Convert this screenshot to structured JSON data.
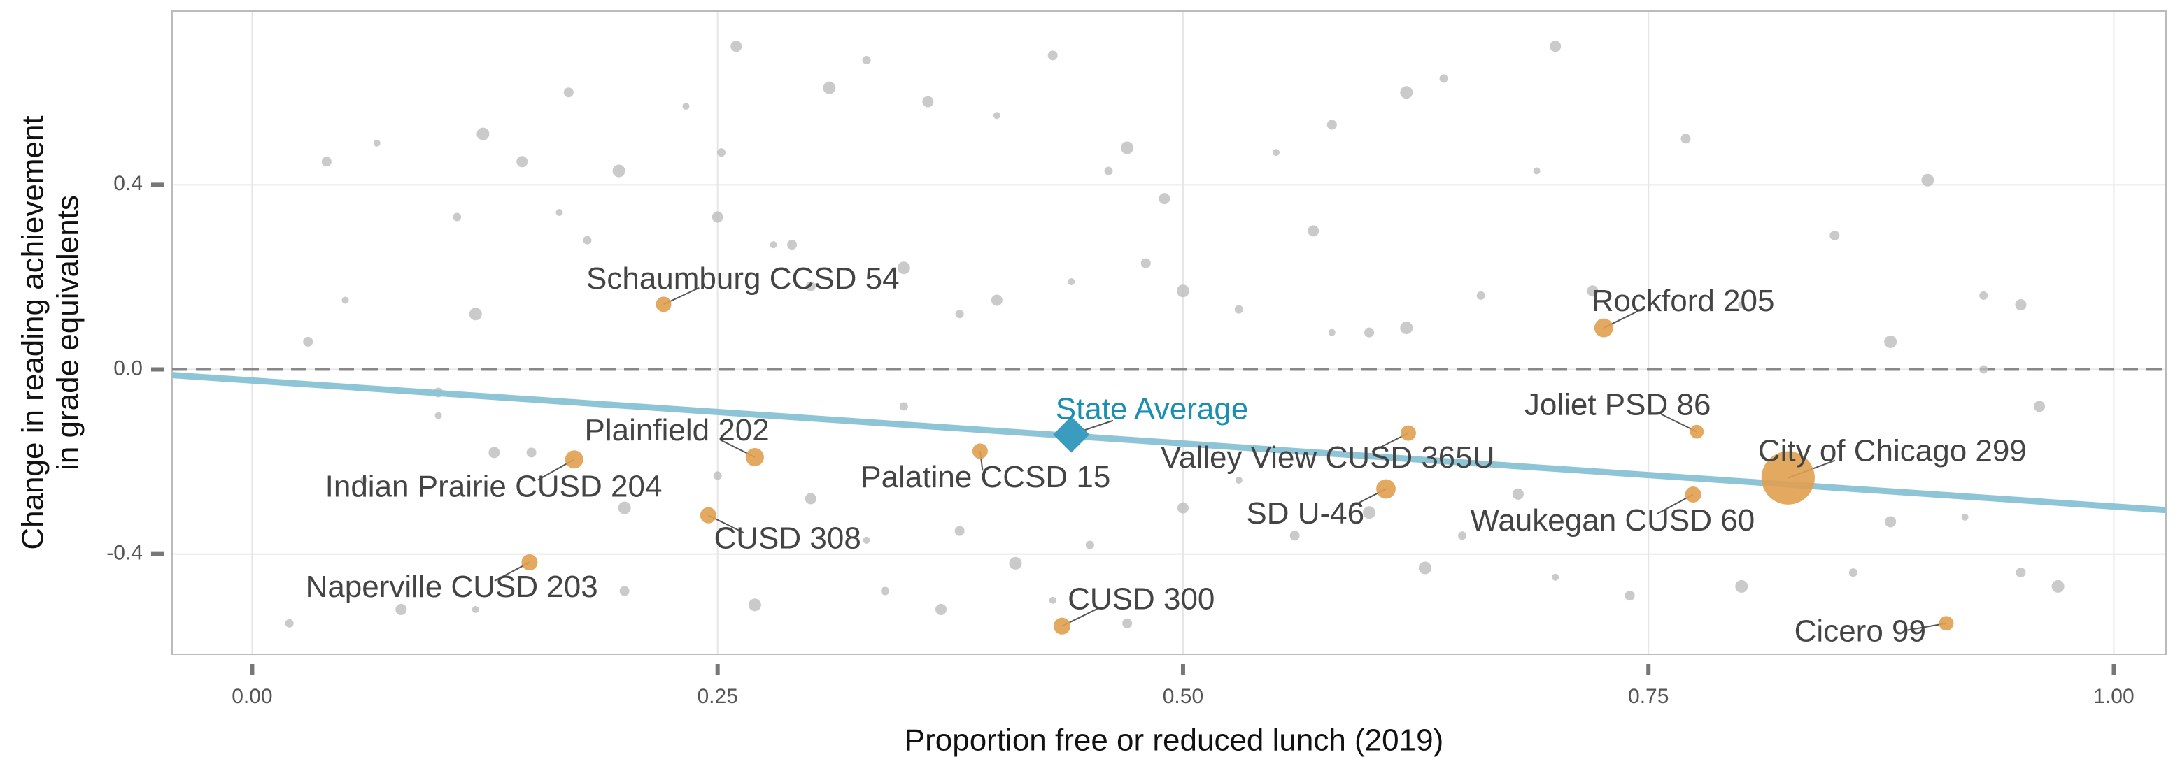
{
  "chart_data": {
    "type": "scatter",
    "xlabel": "Proportion free or reduced lunch (2019)",
    "ylabel": [
      "Change in reading  achievement",
      "in grade equivalents"
    ],
    "xlim": [
      -0.043,
      1.028
    ],
    "ylim": [
      -0.617,
      0.776
    ],
    "xticks": [
      {
        "value": 0,
        "label": "0.00"
      },
      {
        "value": 0.25,
        "label": "0.25"
      },
      {
        "value": 0.5,
        "label": "0.50"
      },
      {
        "value": 0.75,
        "label": "0.75"
      },
      {
        "value": 1,
        "label": "1.00"
      }
    ],
    "yticks": [
      -0.4,
      {
        "value": 0,
        "label": "0.0"
      },
      0.4
    ],
    "grid": true,
    "reference_line": 0,
    "trend": {
      "intercept": -0.024,
      "slope": -0.273,
      "color": "#8ec5d6"
    },
    "background": {
      "color": "#bdbdbd",
      "x": [
        0.067,
        0.04,
        0.124,
        0.11,
        0.145,
        0.165,
        0.17,
        0.197,
        0.252,
        0.26,
        0.233,
        0.29,
        0.31,
        0.33,
        0.363,
        0.4,
        0.43,
        0.47,
        0.46,
        0.49,
        0.55,
        0.58,
        0.62,
        0.64,
        0.7,
        0.69,
        0.77,
        0.9,
        0.93,
        0.95,
        0.05,
        0.03,
        0.12,
        0.18,
        0.25,
        0.28,
        0.3,
        0.35,
        0.38,
        0.4,
        0.44,
        0.48,
        0.5,
        0.53,
        0.57,
        0.58,
        0.6,
        0.62,
        0.66,
        0.72,
        0.8,
        0.85,
        0.88,
        0.93,
        0.96,
        0.1,
        0.15,
        0.2,
        0.25,
        0.3,
        0.33,
        0.38,
        0.41,
        0.45,
        0.5,
        0.53,
        0.56,
        0.6,
        0.65,
        0.68,
        0.7,
        0.74,
        0.8,
        0.86,
        0.88,
        0.92,
        0.95,
        0.97,
        0.02,
        0.08,
        0.12,
        0.2,
        0.27,
        0.34,
        0.37,
        0.43,
        0.47,
        0.63,
        0.35,
        0.13,
        0.06,
        0.1
      ],
      "y": [
        0.49,
        0.45,
        0.51,
        0.33,
        0.45,
        0.34,
        0.6,
        0.43,
        0.47,
        0.7,
        0.57,
        0.27,
        0.61,
        0.67,
        0.58,
        0.55,
        0.68,
        0.48,
        0.43,
        0.37,
        0.47,
        0.53,
        0.6,
        0.63,
        0.7,
        0.43,
        0.5,
        0.41,
        0.16,
        0.14,
        0.15,
        0.06,
        0.12,
        0.28,
        0.33,
        0.27,
        0.18,
        0.22,
        0.12,
        0.15,
        0.19,
        0.23,
        0.17,
        0.13,
        0.3,
        0.08,
        0.08,
        0.09,
        0.16,
        0.17,
        0.14,
        0.29,
        0.06,
        0,
        -0.08,
        -0.1,
        -0.18,
        -0.3,
        -0.23,
        -0.28,
        -0.37,
        -0.35,
        -0.42,
        -0.38,
        -0.3,
        -0.24,
        -0.36,
        -0.31,
        -0.36,
        -0.27,
        -0.45,
        -0.49,
        -0.47,
        -0.44,
        -0.33,
        -0.32,
        -0.44,
        -0.47,
        -0.55,
        -0.52,
        -0.52,
        -0.48,
        -0.51,
        -0.48,
        -0.52,
        -0.5,
        -0.55,
        -0.43,
        -0.08,
        -0.18,
        -0.24,
        -0.05
      ]
    },
    "districts": {
      "color": "#e0a050",
      "labels": [
        "Schaumburg CCSD 54",
        "Rockford 205",
        "Plainfield 202",
        "Indian Prairie CUSD 204",
        "Palatine CCSD 15",
        "Valley View CUSD 365U",
        "Joliet PSD 86",
        "City of Chicago 299",
        "SD U-46",
        "Waukegan CUSD 60",
        "CUSD 308",
        "Naperville CUSD 203",
        "CUSD 300",
        "Cicero 99"
      ],
      "x": [
        0.221,
        0.726,
        0.27,
        0.173,
        0.391,
        0.621,
        0.776,
        0.825,
        0.609,
        0.774,
        0.245,
        0.149,
        0.435,
        0.91
      ],
      "y": [
        0.141,
        0.09,
        -0.19,
        -0.195,
        -0.177,
        -0.138,
        -0.135,
        -0.235,
        -0.259,
        -0.271,
        -0.316,
        -0.418,
        -0.556,
        -0.55
      ],
      "sizes": [
        1,
        1.5,
        1.4,
        1.4,
        1,
        1,
        0.8,
        12,
        1.6,
        1.1,
        1.1,
        1.1,
        1.2,
        0.9
      ]
    },
    "state_average": {
      "label": "State Average",
      "x": 0.44,
      "y": -0.141,
      "color": "#3a9dc0",
      "text_color": "#1b8fb2"
    }
  }
}
